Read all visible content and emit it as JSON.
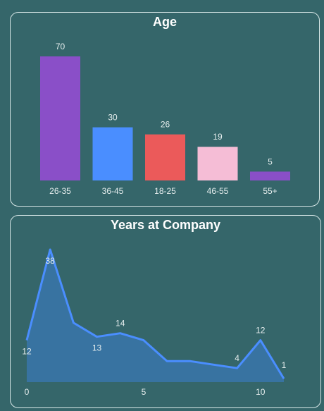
{
  "colors": {
    "background": "#35666a",
    "border": "#d6e6e6",
    "text": "#ffffff",
    "label": "#e6eeee",
    "area_line": "#4a8eff",
    "area_fill": "#3a78b4"
  },
  "chart_data": [
    {
      "type": "bar",
      "title": "Age",
      "categories": [
        "26-35",
        "36-45",
        "18-25",
        "46-55",
        "55+"
      ],
      "values": [
        70,
        30,
        26,
        19,
        5
      ],
      "colors": [
        "#8a4fc8",
        "#4a8eff",
        "#eb5a5a",
        "#f5bdd6",
        "#8a4fc8"
      ],
      "ylim": [
        0,
        70
      ],
      "grid": false,
      "legend": "none"
    },
    {
      "type": "area",
      "title": "Years at Company",
      "x": [
        0,
        1,
        2,
        3,
        4,
        5,
        6,
        7,
        8,
        9,
        10,
        11
      ],
      "values": [
        12,
        38,
        17,
        13,
        14,
        12,
        6,
        6,
        5,
        4,
        12,
        1
      ],
      "data_labels": [
        {
          "x": 0,
          "text": "12"
        },
        {
          "x": 1,
          "text": "38"
        },
        {
          "x": 3,
          "text": "13"
        },
        {
          "x": 4,
          "text": "14"
        },
        {
          "x": 9,
          "text": "4"
        },
        {
          "x": 10,
          "text": "12"
        },
        {
          "x": 11,
          "text": "1"
        }
      ],
      "xticks": [
        0,
        5,
        10
      ],
      "xlim": [
        0,
        11
      ],
      "ylim": [
        0,
        38
      ],
      "grid": false,
      "legend": "none"
    }
  ]
}
